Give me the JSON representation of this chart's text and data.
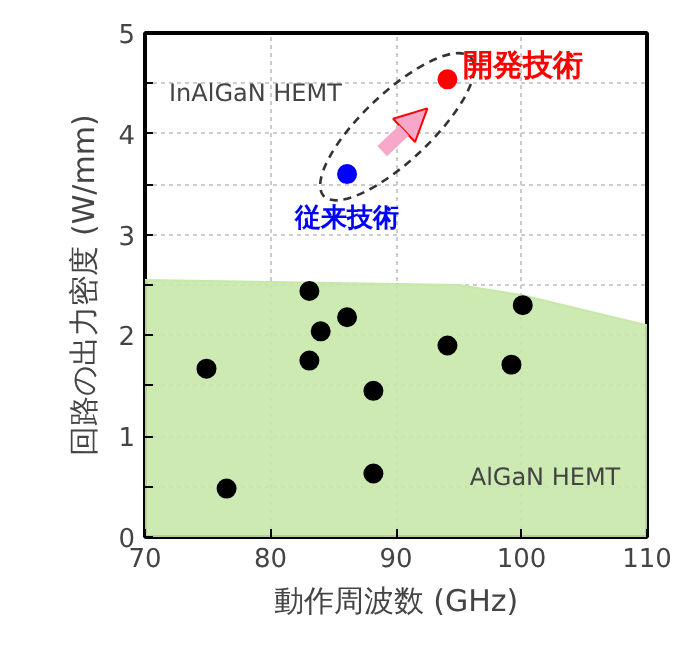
{
  "chart_data": {
    "type": "scatter",
    "xlabel": "動作周波数 (GHz)",
    "ylabel": "回路の出力密度 (W/mm)",
    "xlim": [
      70,
      110
    ],
    "xticks": [
      70,
      80,
      90,
      100,
      110
    ],
    "ylim": [
      0,
      5
    ],
    "yticks": [
      0,
      {
        "value": 0.5,
        "label": null
      },
      1,
      {
        "value": 1.5,
        "label": null
      },
      2,
      {
        "value": 2.5,
        "label": null
      },
      3,
      {
        "value": 3.5,
        "label": null
      },
      4,
      {
        "value": 4.5,
        "label": null
      },
      5
    ],
    "grid": true,
    "series": [
      {
        "type": "area",
        "color": "#c6e8a8",
        "x": [
          70,
          95,
          100,
          105,
          110
        ],
        "values": [
          2.55,
          2.5,
          2.4,
          2.25,
          2.1
        ]
      },
      {
        "color": "#000000",
        "marker": "circle",
        "x": [
          83.1,
          74.9,
          84.0,
          86.1,
          83.1,
          88.2,
          94.1,
          99.2,
          100.1,
          88.2,
          76.5
        ],
        "values": [
          2.44,
          1.67,
          2.04,
          2.18,
          1.75,
          1.45,
          1.9,
          1.71,
          2.3,
          0.63,
          0.48
        ]
      },
      {
        "name": "従来技術",
        "color": "#0000ff",
        "marker": "circle",
        "x": [
          86.1
        ],
        "values": [
          3.6
        ]
      },
      {
        "name": "開発技術",
        "color": "#ff0000",
        "marker": "circle",
        "x": [
          94.1
        ],
        "values": [
          4.54
        ]
      }
    ],
    "annotations": [
      "InAlGaN HEMT",
      "AlGaN HEMT"
    ]
  }
}
